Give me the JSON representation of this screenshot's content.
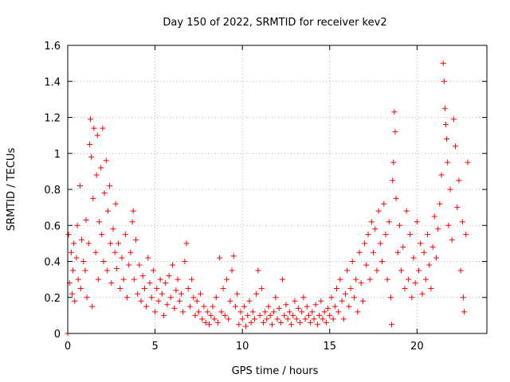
{
  "chart_data": {
    "type": "scatter",
    "title": "Day 150 of 2022, SRMTID for receiver kev2",
    "xlabel": "GPS time / hours",
    "ylabel": "SRMTID / TECUs",
    "xlim": [
      0,
      24
    ],
    "ylim": [
      0,
      1.6
    ],
    "xticks": [
      0,
      5,
      10,
      15,
      20
    ],
    "yticks": [
      0,
      0.2,
      0.4,
      0.6,
      0.8,
      1,
      1.2,
      1.4,
      1.6
    ],
    "xtick_labels": [
      "0",
      "5",
      "10",
      "15",
      "20"
    ],
    "ytick_labels": [
      "0",
      "0.2",
      "0.4",
      "0.6",
      "0.8",
      "1",
      "1.2",
      "1.4",
      "1.6"
    ],
    "grid": true,
    "marker": "+",
    "series": [
      {
        "name": "SRMTID",
        "color": "#ff0000",
        "points": [
          [
            0.0,
            0.0
          ],
          [
            0.05,
            0.55
          ],
          [
            0.1,
            0.28
          ],
          [
            0.2,
            0.45
          ],
          [
            0.25,
            0.22
          ],
          [
            0.3,
            0.35
          ],
          [
            0.35,
            0.5
          ],
          [
            0.4,
            0.18
          ],
          [
            0.5,
            0.42
          ],
          [
            0.55,
            0.6
          ],
          [
            0.6,
            0.3
          ],
          [
            0.7,
            0.82
          ],
          [
            0.75,
            0.25
          ],
          [
            0.8,
            0.52
          ],
          [
            0.9,
            0.4
          ],
          [
            1.0,
            0.35
          ],
          [
            1.05,
            0.63
          ],
          [
            1.1,
            0.2
          ],
          [
            1.2,
            0.5
          ],
          [
            1.25,
            1.05
          ],
          [
            1.3,
            1.19
          ],
          [
            1.35,
            0.98
          ],
          [
            1.4,
            0.15
          ],
          [
            1.45,
            0.75
          ],
          [
            1.5,
            1.14
          ],
          [
            1.6,
            0.45
          ],
          [
            1.65,
            0.88
          ],
          [
            1.7,
            1.1
          ],
          [
            1.75,
            0.3
          ],
          [
            1.8,
            0.62
          ],
          [
            1.9,
            0.92
          ],
          [
            1.95,
            0.55
          ],
          [
            2.0,
            1.14
          ],
          [
            2.05,
            0.4
          ],
          [
            2.1,
            0.78
          ],
          [
            2.2,
            0.96
          ],
          [
            2.25,
            0.35
          ],
          [
            2.3,
            0.68
          ],
          [
            2.4,
            0.82
          ],
          [
            2.45,
            0.5
          ],
          [
            2.5,
            0.28
          ],
          [
            2.6,
            0.58
          ],
          [
            2.7,
            0.45
          ],
          [
            2.75,
            0.72
          ],
          [
            2.8,
            0.36
          ],
          [
            2.9,
            0.5
          ],
          [
            3.0,
            0.25
          ],
          [
            3.1,
            0.42
          ],
          [
            3.2,
            0.3
          ],
          [
            3.3,
            0.55
          ],
          [
            3.4,
            0.2
          ],
          [
            3.5,
            0.38
          ],
          [
            3.6,
            0.45
          ],
          [
            3.7,
            0.62
          ],
          [
            3.75,
            0.68
          ],
          [
            3.8,
            0.3
          ],
          [
            3.9,
            0.52
          ],
          [
            4.0,
            0.22
          ],
          [
            4.1,
            0.38
          ],
          [
            4.2,
            0.18
          ],
          [
            4.3,
            0.32
          ],
          [
            4.4,
            0.25
          ],
          [
            4.5,
            0.15
          ],
          [
            4.6,
            0.42
          ],
          [
            4.7,
            0.28
          ],
          [
            4.8,
            0.2
          ],
          [
            4.9,
            0.35
          ],
          [
            5.0,
            0.12
          ],
          [
            5.1,
            0.25
          ],
          [
            5.2,
            0.18
          ],
          [
            5.3,
            0.3
          ],
          [
            5.4,
            0.22
          ],
          [
            5.5,
            0.1
          ],
          [
            5.6,
            0.28
          ],
          [
            5.7,
            0.16
          ],
          [
            5.8,
            0.32
          ],
          [
            5.9,
            0.2
          ],
          [
            6.0,
            0.38
          ],
          [
            6.1,
            0.14
          ],
          [
            6.2,
            0.24
          ],
          [
            6.3,
            0.3
          ],
          [
            6.4,
            0.18
          ],
          [
            6.5,
            0.22
          ],
          [
            6.6,
            0.12
          ],
          [
            6.7,
            0.4
          ],
          [
            6.8,
            0.5
          ],
          [
            6.9,
            0.25
          ],
          [
            7.0,
            0.15
          ],
          [
            7.1,
            0.3
          ],
          [
            7.2,
            0.2
          ],
          [
            7.3,
            0.1
          ],
          [
            7.4,
            0.18
          ],
          [
            7.5,
            0.12
          ],
          [
            7.6,
            0.22
          ],
          [
            7.7,
            0.08
          ],
          [
            7.8,
            0.15
          ],
          [
            7.9,
            0.06
          ],
          [
            8.0,
            0.12
          ],
          [
            8.1,
            0.05
          ],
          [
            8.2,
            0.1
          ],
          [
            8.3,
            0.15
          ],
          [
            8.4,
            0.08
          ],
          [
            8.5,
            0.2
          ],
          [
            8.6,
            0.06
          ],
          [
            8.7,
            0.42
          ],
          [
            8.8,
            0.12
          ],
          [
            8.9,
            0.25
          ],
          [
            9.0,
            0.1
          ],
          [
            9.1,
            0.3
          ],
          [
            9.2,
            0.08
          ],
          [
            9.3,
            0.18
          ],
          [
            9.4,
            0.35
          ],
          [
            9.5,
            0.43
          ],
          [
            9.6,
            0.15
          ],
          [
            9.7,
            0.22
          ],
          [
            9.8,
            0.05
          ],
          [
            9.9,
            0.12
          ],
          [
            10.0,
            0.08
          ],
          [
            10.1,
            0.15
          ],
          [
            10.2,
            0.04
          ],
          [
            10.3,
            0.1
          ],
          [
            10.4,
            0.18
          ],
          [
            10.5,
            0.06
          ],
          [
            10.6,
            0.12
          ],
          [
            10.7,
            0.08
          ],
          [
            10.8,
            0.22
          ],
          [
            10.9,
            0.35
          ],
          [
            11.0,
            0.1
          ],
          [
            11.1,
            0.25
          ],
          [
            11.2,
            0.06
          ],
          [
            11.3,
            0.12
          ],
          [
            11.4,
            0.08
          ],
          [
            11.5,
            0.15
          ],
          [
            11.6,
            0.1
          ],
          [
            11.7,
            0.05
          ],
          [
            11.8,
            0.12
          ],
          [
            11.9,
            0.2
          ],
          [
            12.0,
            0.08
          ],
          [
            12.1,
            0.14
          ],
          [
            12.2,
            0.06
          ],
          [
            12.3,
            0.3
          ],
          [
            12.4,
            0.1
          ],
          [
            12.5,
            0.16
          ],
          [
            12.6,
            0.08
          ],
          [
            12.7,
            0.12
          ],
          [
            12.8,
            0.05
          ],
          [
            12.9,
            0.1
          ],
          [
            13.0,
            0.18
          ],
          [
            13.1,
            0.08
          ],
          [
            13.2,
            0.14
          ],
          [
            13.3,
            0.06
          ],
          [
            13.4,
            0.12
          ],
          [
            13.5,
            0.2
          ],
          [
            13.6,
            0.08
          ],
          [
            13.7,
            0.15
          ],
          [
            13.8,
            0.1
          ],
          [
            13.9,
            0.06
          ],
          [
            14.0,
            0.12
          ],
          [
            14.1,
            0.08
          ],
          [
            14.2,
            0.16
          ],
          [
            14.3,
            0.05
          ],
          [
            14.4,
            0.1
          ],
          [
            14.5,
            0.18
          ],
          [
            14.6,
            0.08
          ],
          [
            14.7,
            0.12
          ],
          [
            14.8,
            0.06
          ],
          [
            14.9,
            0.14
          ],
          [
            15.0,
            0.1
          ],
          [
            15.1,
            0.2
          ],
          [
            15.2,
            0.08
          ],
          [
            15.3,
            0.15
          ],
          [
            15.4,
            0.25
          ],
          [
            15.5,
            0.12
          ],
          [
            15.6,
            0.3
          ],
          [
            15.7,
            0.18
          ],
          [
            15.8,
            0.08
          ],
          [
            15.9,
            0.22
          ],
          [
            16.0,
            0.35
          ],
          [
            16.1,
            0.15
          ],
          [
            16.2,
            0.25
          ],
          [
            16.3,
            0.4
          ],
          [
            16.4,
            0.2
          ],
          [
            16.5,
            0.3
          ],
          [
            16.6,
            0.12
          ],
          [
            16.7,
            0.45
          ],
          [
            16.8,
            0.28
          ],
          [
            16.9,
            0.18
          ],
          [
            17.0,
            0.5
          ],
          [
            17.1,
            0.38
          ],
          [
            17.2,
            0.55
          ],
          [
            17.3,
            0.3
          ],
          [
            17.4,
            0.62
          ],
          [
            17.5,
            0.45
          ],
          [
            17.6,
            0.58
          ],
          [
            17.7,
            0.35
          ],
          [
            17.8,
            0.68
          ],
          [
            17.9,
            0.5
          ],
          [
            18.0,
            0.4
          ],
          [
            18.1,
            0.72
          ],
          [
            18.2,
            0.55
          ],
          [
            18.3,
            0.3
          ],
          [
            18.4,
            0.62
          ],
          [
            18.5,
            0.2
          ],
          [
            18.55,
            0.05
          ],
          [
            18.6,
            0.85
          ],
          [
            18.65,
            0.95
          ],
          [
            18.7,
            1.23
          ],
          [
            18.75,
            1.12
          ],
          [
            18.8,
            0.75
          ],
          [
            18.9,
            0.45
          ],
          [
            19.0,
            0.6
          ],
          [
            19.1,
            0.35
          ],
          [
            19.2,
            0.48
          ],
          [
            19.3,
            0.25
          ],
          [
            19.4,
            0.68
          ],
          [
            19.5,
            0.3
          ],
          [
            19.6,
            0.55
          ],
          [
            19.7,
            0.2
          ],
          [
            19.8,
            0.42
          ],
          [
            19.9,
            0.28
          ],
          [
            20.0,
            0.62
          ],
          [
            20.1,
            0.35
          ],
          [
            20.2,
            0.5
          ],
          [
            20.3,
            0.22
          ],
          [
            20.4,
            0.45
          ],
          [
            20.5,
            0.3
          ],
          [
            20.6,
            0.55
          ],
          [
            20.7,
            0.38
          ],
          [
            20.8,
            0.25
          ],
          [
            20.9,
            0.48
          ],
          [
            21.0,
            0.65
          ],
          [
            21.1,
            0.42
          ],
          [
            21.2,
            0.58
          ],
          [
            21.3,
            0.72
          ],
          [
            21.4,
            0.88
          ],
          [
            21.5,
            1.5
          ],
          [
            21.55,
            1.4
          ],
          [
            21.6,
            1.25
          ],
          [
            21.65,
            1.16
          ],
          [
            21.7,
            1.08
          ],
          [
            21.75,
            0.95
          ],
          [
            21.8,
            0.6
          ],
          [
            21.9,
            0.8
          ],
          [
            22.0,
            0.52
          ],
          [
            22.1,
            1.19
          ],
          [
            22.2,
            1.04
          ],
          [
            22.3,
            0.7
          ],
          [
            22.4,
            0.85
          ],
          [
            22.5,
            0.35
          ],
          [
            22.6,
            0.62
          ],
          [
            22.65,
            0.2
          ],
          [
            22.7,
            0.12
          ],
          [
            22.8,
            0.55
          ],
          [
            22.9,
            0.95
          ]
        ]
      }
    ]
  }
}
